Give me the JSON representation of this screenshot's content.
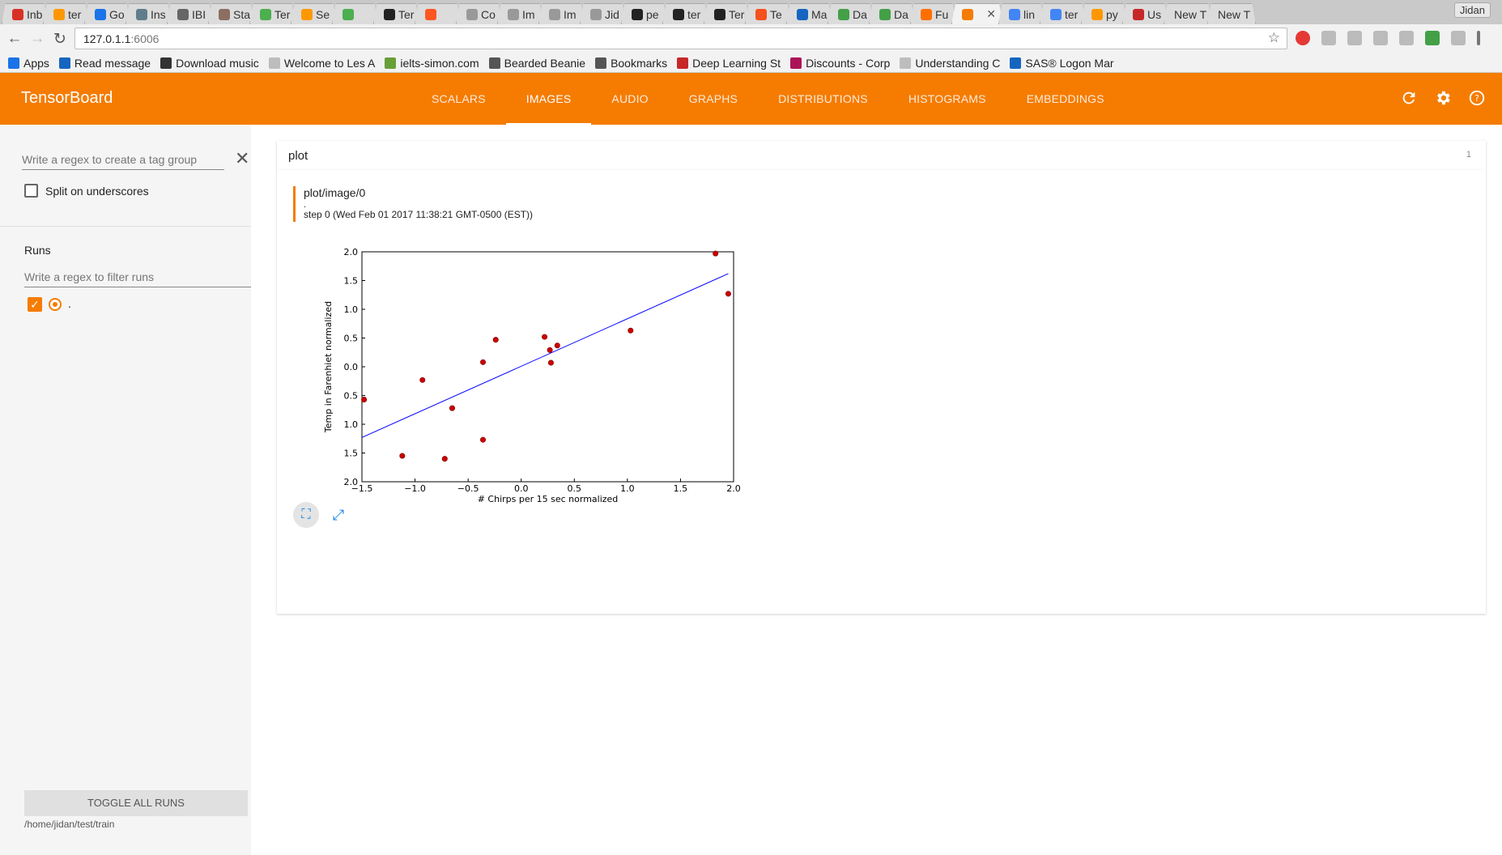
{
  "browser": {
    "tabs": [
      {
        "label": "Inb",
        "color": "#d93025"
      },
      {
        "label": "ter",
        "color": "#ff9800"
      },
      {
        "label": "Go",
        "color": "#1a73e8"
      },
      {
        "label": "Ins",
        "color": "#607d8b"
      },
      {
        "label": "IBI",
        "color": "#666666"
      },
      {
        "label": "Sta",
        "color": "#8d6e63"
      },
      {
        "label": "Ter",
        "color": "#4caf50"
      },
      {
        "label": "Se",
        "color": "#ff9800"
      },
      {
        "label": "",
        "color": "#4caf50"
      },
      {
        "label": "Ter",
        "color": "#222222"
      },
      {
        "label": "",
        "color": "#ff5722"
      },
      {
        "label": "Co",
        "color": "#999999"
      },
      {
        "label": "Im",
        "color": "#999999"
      },
      {
        "label": "Im",
        "color": "#999999"
      },
      {
        "label": "Jid",
        "color": "#999999"
      },
      {
        "label": "pe",
        "color": "#222222"
      },
      {
        "label": "ter",
        "color": "#222222"
      },
      {
        "label": "Ter",
        "color": "#222222"
      },
      {
        "label": "Te",
        "color": "#f4511e"
      },
      {
        "label": "Ma",
        "color": "#1565c0"
      },
      {
        "label": "Da",
        "color": "#43a047"
      },
      {
        "label": "Da",
        "color": "#43a047"
      },
      {
        "label": "Fu",
        "color": "#ff6f00"
      }
    ],
    "active_tab": {
      "color": "#f57c00",
      "close": "✕"
    },
    "tabs_after": [
      {
        "label": "lin",
        "color": "#4285f4"
      },
      {
        "label": "ter",
        "color": "#4285f4"
      },
      {
        "label": "py",
        "color": "#ff9800"
      },
      {
        "label": "Us",
        "color": "#c62828"
      }
    ],
    "new_tabs": [
      "New T",
      "New T"
    ],
    "user": "Jidan",
    "url_host": "127.0.1.1",
    "url_port": ":6006",
    "bookmarks": [
      {
        "label": "Apps",
        "color": "#1a73e8"
      },
      {
        "label": "Read message",
        "color": "#1565c0"
      },
      {
        "label": "Download music",
        "color": "#333333"
      },
      {
        "label": "Welcome to Les A",
        "color": "#bdbdbd"
      },
      {
        "label": "ielts-simon.com",
        "color": "#689f38"
      },
      {
        "label": "Bearded Beanie",
        "color": "#555555"
      },
      {
        "label": "Bookmarks",
        "color": "#555555"
      },
      {
        "label": "Deep Learning St",
        "color": "#c62828"
      },
      {
        "label": "Discounts - Corp",
        "color": "#ad1457"
      },
      {
        "label": "Understanding C",
        "color": "#bdbdbd"
      },
      {
        "label": "SAS® Logon Mar",
        "color": "#1565c0"
      }
    ]
  },
  "header": {
    "title": "TensorBoard",
    "tabs": [
      "SCALARS",
      "IMAGES",
      "AUDIO",
      "GRAPHS",
      "DISTRIBUTIONS",
      "HISTOGRAMS",
      "EMBEDDINGS"
    ],
    "active_tab": "IMAGES"
  },
  "sidebar": {
    "tag_regex_placeholder": "Write a regex to create a tag group",
    "split_label": "Split on underscores",
    "runs_label": "Runs",
    "runs_filter_placeholder": "Write a regex to filter runs",
    "run_name": ".",
    "toggle_all_label": "TOGGLE ALL RUNS",
    "logdir": "/home/jidan/test/train"
  },
  "main": {
    "group_title": "plot",
    "group_count": "1",
    "image_tag": "plot/image/0",
    "run_dot": ".",
    "step_text": "step 0 (Wed Feb 01 2017 11:38:21 GMT-0500 (EST))"
  },
  "chart_data": {
    "type": "scatter",
    "xlabel": "# Chirps per 15 sec normalized",
    "ylabel": "Temp in Farenhiet normalized",
    "xlim": [
      -1.5,
      2.0
    ],
    "ylim": [
      -2.0,
      2.0
    ],
    "xticks": [
      "−1.5",
      "−1.0",
      "−0.5",
      "0.0",
      "0.5",
      "1.0",
      "1.5",
      "2.0"
    ],
    "yticks": [
      "2.0",
      "1.5",
      "1.0",
      "0.5",
      "0.0",
      "0.5",
      "1.0",
      "1.5",
      "2.0"
    ],
    "points": [
      [
        -1.48,
        -0.57
      ],
      [
        -1.12,
        -1.55
      ],
      [
        -0.93,
        -0.23
      ],
      [
        -0.72,
        -1.6
      ],
      [
        -0.65,
        -0.72
      ],
      [
        -0.36,
        0.08
      ],
      [
        -0.36,
        -1.27
      ],
      [
        -0.24,
        0.47
      ],
      [
        0.22,
        0.52
      ],
      [
        0.27,
        0.29
      ],
      [
        0.28,
        0.07
      ],
      [
        0.34,
        0.37
      ],
      [
        1.03,
        0.63
      ],
      [
        1.83,
        1.97
      ],
      [
        1.95,
        1.27
      ]
    ],
    "fit_line": [
      [
        -1.5,
        -1.23
      ],
      [
        1.95,
        1.62
      ]
    ],
    "point_color": "#cc0000",
    "line_color": "#0000ff",
    "grid": false
  }
}
